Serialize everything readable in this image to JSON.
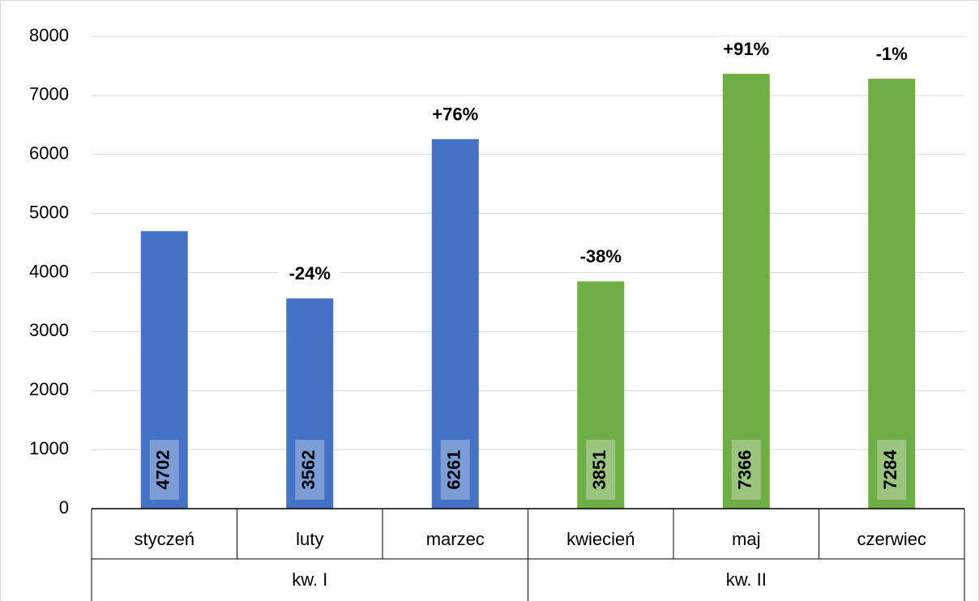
{
  "chart_data": {
    "type": "bar",
    "categories": [
      "styczeń",
      "luty",
      "marzec",
      "kwiecień",
      "maj",
      "czerwiec"
    ],
    "values": [
      4702,
      3562,
      6261,
      3851,
      7366,
      7284
    ],
    "colors": [
      "#4472c4",
      "#4472c4",
      "#4472c4",
      "#70ad47",
      "#70ad47",
      "#70ad47"
    ],
    "change_labels": [
      null,
      "-24%",
      "+76%",
      "-38%",
      "+91%",
      "-1%"
    ],
    "groups": [
      {
        "label": "kw. I",
        "size": 3
      },
      {
        "label": "kw. II",
        "size": 3
      }
    ],
    "ylim": [
      0,
      8000
    ],
    "yticks": [
      0,
      1000,
      2000,
      3000,
      4000,
      5000,
      6000,
      7000,
      8000
    ],
    "grid": true
  }
}
